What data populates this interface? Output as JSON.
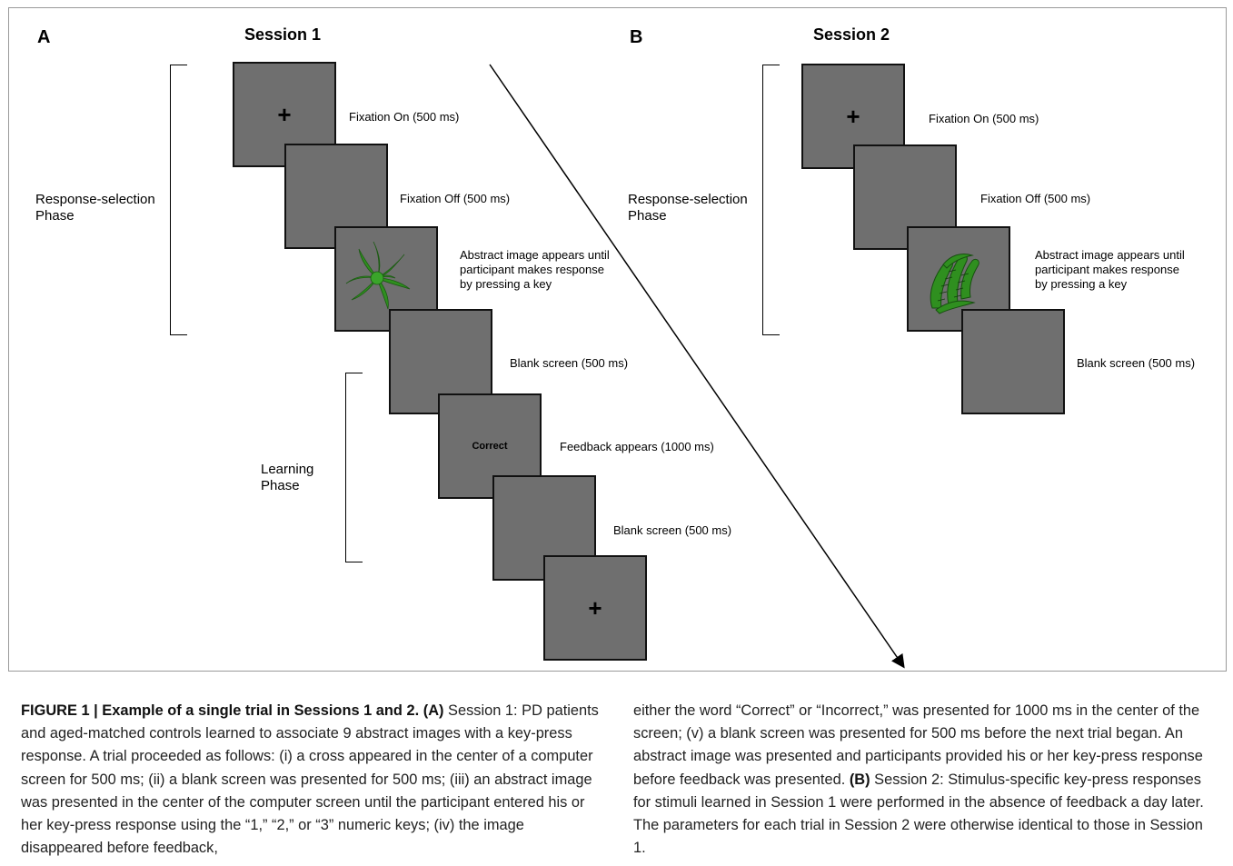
{
  "panel_a": {
    "letter": "A",
    "title": "Session 1",
    "response_phase": "Response-selection Phase",
    "learning_phase": "Learning Phase",
    "screens": [
      {
        "symbol": "+",
        "label": "Fixation On (500 ms)"
      },
      {
        "symbol": "",
        "label": "Fixation Off (500 ms)"
      },
      {
        "symbol": "",
        "label": "Abstract image appears until participant makes response by pressing a key"
      },
      {
        "symbol": "",
        "label": "Blank screen (500 ms)"
      },
      {
        "symbol": "Correct",
        "label": "Feedback appears (1000 ms)"
      },
      {
        "symbol": "",
        "label": "Blank screen (500 ms)"
      },
      {
        "symbol": "+",
        "label": ""
      }
    ]
  },
  "panel_b": {
    "letter": "B",
    "title": "Session 2",
    "response_phase": "Response-selection Phase",
    "screens": [
      {
        "symbol": "+",
        "label": "Fixation On (500 ms)"
      },
      {
        "symbol": "",
        "label": "Fixation Off (500 ms)"
      },
      {
        "symbol": "",
        "label": "Abstract image appears until participant makes response by pressing a key"
      },
      {
        "symbol": "",
        "label": "Blank screen (500 ms)"
      }
    ]
  },
  "colors": {
    "screen_fill": "#6f6f6f",
    "stimulus_green": "#2f8f1f"
  },
  "caption": {
    "heading": "FIGURE 1 | Example of a single trial in Sessions 1 and 2.",
    "a_ref": "(A)",
    "a_text": " Session 1: PD patients and aged-matched controls learned to associate 9 abstract images with a key-press response. A trial proceeded as follows: (i) a cross appeared in the center of a computer screen for 500 ms; (ii) a blank screen was presented for 500 ms; (iii) an abstract image was presented in the center of the computer screen until the participant entered his or her key-press response using the “1,” “2,” or “3” numeric keys; (iv) the image disappeared before feedback, either the word “Correct” or “Incorrect,” was presented for 1000 ms in the center of the screen; (v) a blank screen was presented for 500 ms before the next trial began. An abstract image was presented and participants provided his or her key-press response before feedback was presented.",
    "b_ref": "(B)",
    "b_text": " Session 2: Stimulus-specific key-press responses for stimuli learned in Session 1 were performed in the absence of feedback a day later. The parameters for each trial in Session 2 were otherwise identical to those in Session 1."
  }
}
